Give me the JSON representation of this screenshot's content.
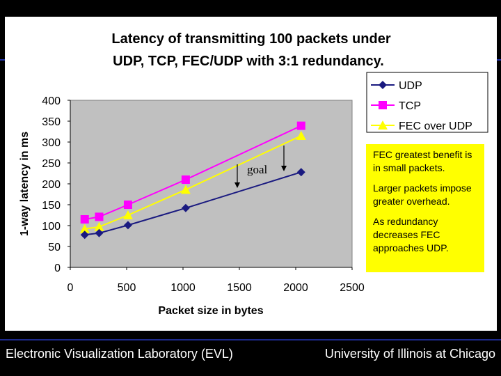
{
  "chart_data": {
    "type": "line",
    "title_line1": "Latency of transmitting 100 packets under",
    "title_line2": "UDP, TCP, FEC/UDP with 3:1 redundancy.",
    "xlabel": "Packet size in bytes",
    "ylabel": "1-way latency in ms",
    "xlim": [
      0,
      2500
    ],
    "ylim": [
      0,
      400
    ],
    "x_ticks": [
      "0",
      "500",
      "1000",
      "1500",
      "2000",
      "2500"
    ],
    "y_ticks": [
      "0",
      "50",
      "100",
      "150",
      "200",
      "250",
      "300",
      "350",
      "400"
    ],
    "x": [
      128,
      256,
      512,
      1024,
      2048
    ],
    "series": [
      {
        "name": "UDP",
        "color": "#1a1a80",
        "marker": "diamond",
        "values": [
          78,
          82,
          101,
          142,
          228
        ]
      },
      {
        "name": "TCP",
        "color": "#ff00ff",
        "marker": "square",
        "values": [
          115,
          121,
          150,
          210,
          339
        ]
      },
      {
        "name": "FEC over UDP",
        "color": "#ffff00",
        "marker": "triangle",
        "values": [
          92,
          97,
          125,
          186,
          315
        ]
      }
    ],
    "grid": false,
    "plot_background": "#c0c0c0",
    "legend_placement": "top-right"
  },
  "annotations": {
    "goal": "goal",
    "notes": [
      "FEC greatest benefit is in small packets.",
      "Larger packets impose greater overhead.",
      "As redundancy decreases FEC approaches UDP."
    ]
  },
  "footer": {
    "left": "Electronic Visualization Laboratory (EVL)",
    "right": "University of Illinois at Chicago"
  }
}
